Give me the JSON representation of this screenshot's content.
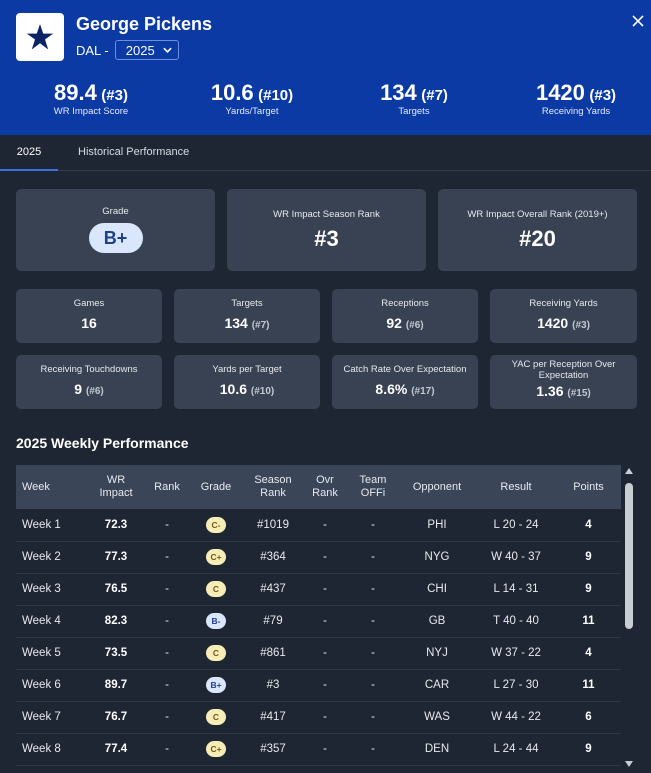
{
  "header": {
    "name": "George Pickens",
    "team": "DAL -",
    "season": "2025",
    "stats": [
      {
        "value": "89.4",
        "rank": "(#3)",
        "label": "WR Impact Score"
      },
      {
        "value": "10.6",
        "rank": "(#10)",
        "label": "Yards/Target"
      },
      {
        "value": "134",
        "rank": "(#7)",
        "label": "Targets"
      },
      {
        "value": "1420",
        "rank": "(#3)",
        "label": "Receiving Yards"
      }
    ]
  },
  "tabs": [
    "2025",
    "Historical Performance"
  ],
  "summary": {
    "grade_label": "Grade",
    "grade": "B+",
    "season_rank_label": "WR Impact Season Rank",
    "season_rank": "#3",
    "overall_rank_label": "WR Impact Overall Rank (2019+)",
    "overall_rank": "#20"
  },
  "stat_cards": [
    {
      "label": "Games",
      "value": "16",
      "rank": ""
    },
    {
      "label": "Targets",
      "value": "134",
      "rank": "(#7)"
    },
    {
      "label": "Receptions",
      "value": "92",
      "rank": "(#6)"
    },
    {
      "label": "Receiving Yards",
      "value": "1420",
      "rank": "(#3)"
    },
    {
      "label": "Receiving Touchdowns",
      "value": "9",
      "rank": "(#6)"
    },
    {
      "label": "Yards per Target",
      "value": "10.6",
      "rank": "(#10)"
    },
    {
      "label": "Catch Rate Over Expectation",
      "value": "8.6%",
      "rank": "(#17)"
    },
    {
      "label": "YAC per Reception Over Expectation",
      "value": "1.36",
      "rank": "(#15)"
    }
  ],
  "weekly": {
    "title": "2025 Weekly Performance",
    "columns": [
      "Week",
      "WR Impact",
      "Rank",
      "Grade",
      "Season Rank",
      "Ovr Rank",
      "Team OFFi",
      "Opponent",
      "Result",
      "Points"
    ],
    "rows": [
      {
        "week": "Week 1",
        "impact": "72.3",
        "rank": "-",
        "grade": "C-",
        "season_rank": "#1019",
        "ovr_rank": "-",
        "team_offi": "-",
        "opponent": "PHI",
        "result": "L 20 - 24",
        "points": "4"
      },
      {
        "week": "Week 2",
        "impact": "77.3",
        "rank": "-",
        "grade": "C+",
        "season_rank": "#364",
        "ovr_rank": "-",
        "team_offi": "-",
        "opponent": "NYG",
        "result": "W 40 - 37",
        "points": "9"
      },
      {
        "week": "Week 3",
        "impact": "76.5",
        "rank": "-",
        "grade": "C",
        "season_rank": "#437",
        "ovr_rank": "-",
        "team_offi": "-",
        "opponent": "CHI",
        "result": "L 14 - 31",
        "points": "9"
      },
      {
        "week": "Week 4",
        "impact": "82.3",
        "rank": "-",
        "grade": "B-",
        "season_rank": "#79",
        "ovr_rank": "-",
        "team_offi": "-",
        "opponent": "GB",
        "result": "T 40 - 40",
        "points": "11"
      },
      {
        "week": "Week 5",
        "impact": "73.5",
        "rank": "-",
        "grade": "C",
        "season_rank": "#861",
        "ovr_rank": "-",
        "team_offi": "-",
        "opponent": "NYJ",
        "result": "W 37 - 22",
        "points": "4"
      },
      {
        "week": "Week 6",
        "impact": "89.7",
        "rank": "-",
        "grade": "B+",
        "season_rank": "#3",
        "ovr_rank": "-",
        "team_offi": "-",
        "opponent": "CAR",
        "result": "L 27 - 30",
        "points": "11"
      },
      {
        "week": "Week 7",
        "impact": "76.7",
        "rank": "-",
        "grade": "C",
        "season_rank": "#417",
        "ovr_rank": "-",
        "team_offi": "-",
        "opponent": "WAS",
        "result": "W 44 - 22",
        "points": "6"
      },
      {
        "week": "Week 8",
        "impact": "77.4",
        "rank": "-",
        "grade": "C+",
        "season_rank": "#357",
        "ovr_rank": "-",
        "team_offi": "-",
        "opponent": "DEN",
        "result": "L 24 - 44",
        "points": "9"
      }
    ]
  },
  "colors": {
    "header_bg": "#0b3aa5",
    "page_bg": "#1e2633",
    "card_bg": "#384252",
    "grade_b": "#d9e6fb",
    "grade_c": "#f7edb8"
  },
  "icons": {
    "logo": "star-logo-icon",
    "close": "close-icon",
    "dropdown": "chevron-down-icon"
  }
}
